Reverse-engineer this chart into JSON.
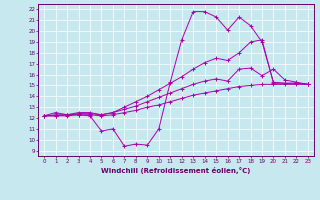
{
  "xlabel": "Windchill (Refroidissement éolien,°C)",
  "bg_color": "#c8e8f0",
  "line_color": "#aa00aa",
  "xlim": [
    -0.5,
    23.5
  ],
  "ylim": [
    8.5,
    22.5
  ],
  "yticks": [
    9,
    10,
    11,
    12,
    13,
    14,
    15,
    16,
    17,
    18,
    19,
    20,
    21,
    22
  ],
  "xticks": [
    0,
    1,
    2,
    3,
    4,
    5,
    6,
    7,
    8,
    9,
    10,
    11,
    12,
    13,
    14,
    15,
    16,
    17,
    18,
    19,
    20,
    21,
    22,
    23
  ],
  "lines": [
    {
      "x": [
        0,
        1,
        2,
        3,
        4,
        5,
        6,
        7,
        8,
        9,
        10,
        11,
        12,
        13,
        14,
        15,
        16,
        17,
        18,
        19,
        20,
        21,
        22,
        23
      ],
      "y": [
        12.2,
        12.5,
        12.3,
        12.3,
        12.2,
        10.8,
        11.0,
        9.4,
        9.6,
        9.5,
        11.0,
        15.3,
        19.2,
        21.8,
        21.8,
        21.3,
        20.1,
        21.3,
        20.5,
        19.0,
        15.3,
        15.2,
        15.2,
        15.1
      ]
    },
    {
      "x": [
        0,
        1,
        2,
        3,
        4,
        5,
        6,
        7,
        8,
        9,
        10,
        11,
        12,
        13,
        14,
        15,
        16,
        17,
        18,
        19,
        20,
        21,
        22,
        23
      ],
      "y": [
        12.2,
        12.3,
        12.3,
        12.5,
        12.5,
        12.3,
        12.5,
        13.0,
        13.5,
        14.0,
        14.6,
        15.2,
        15.8,
        16.5,
        17.1,
        17.5,
        17.3,
        18.0,
        19.0,
        19.2,
        15.2,
        15.2,
        15.2,
        15.1
      ]
    },
    {
      "x": [
        0,
        1,
        2,
        3,
        4,
        5,
        6,
        7,
        8,
        9,
        10,
        11,
        12,
        13,
        14,
        15,
        16,
        17,
        18,
        19,
        20,
        21,
        22,
        23
      ],
      "y": [
        12.2,
        12.2,
        12.3,
        12.4,
        12.4,
        12.3,
        12.5,
        12.8,
        13.1,
        13.5,
        13.9,
        14.3,
        14.7,
        15.1,
        15.4,
        15.6,
        15.4,
        16.5,
        16.6,
        15.9,
        16.5,
        15.5,
        15.3,
        15.1
      ]
    },
    {
      "x": [
        0,
        1,
        2,
        3,
        4,
        5,
        6,
        7,
        8,
        9,
        10,
        11,
        12,
        13,
        14,
        15,
        16,
        17,
        18,
        19,
        20,
        21,
        22,
        23
      ],
      "y": [
        12.2,
        12.2,
        12.2,
        12.3,
        12.3,
        12.2,
        12.3,
        12.5,
        12.7,
        13.0,
        13.2,
        13.5,
        13.8,
        14.1,
        14.3,
        14.5,
        14.7,
        14.9,
        15.0,
        15.1,
        15.1,
        15.1,
        15.1,
        15.1
      ]
    }
  ]
}
